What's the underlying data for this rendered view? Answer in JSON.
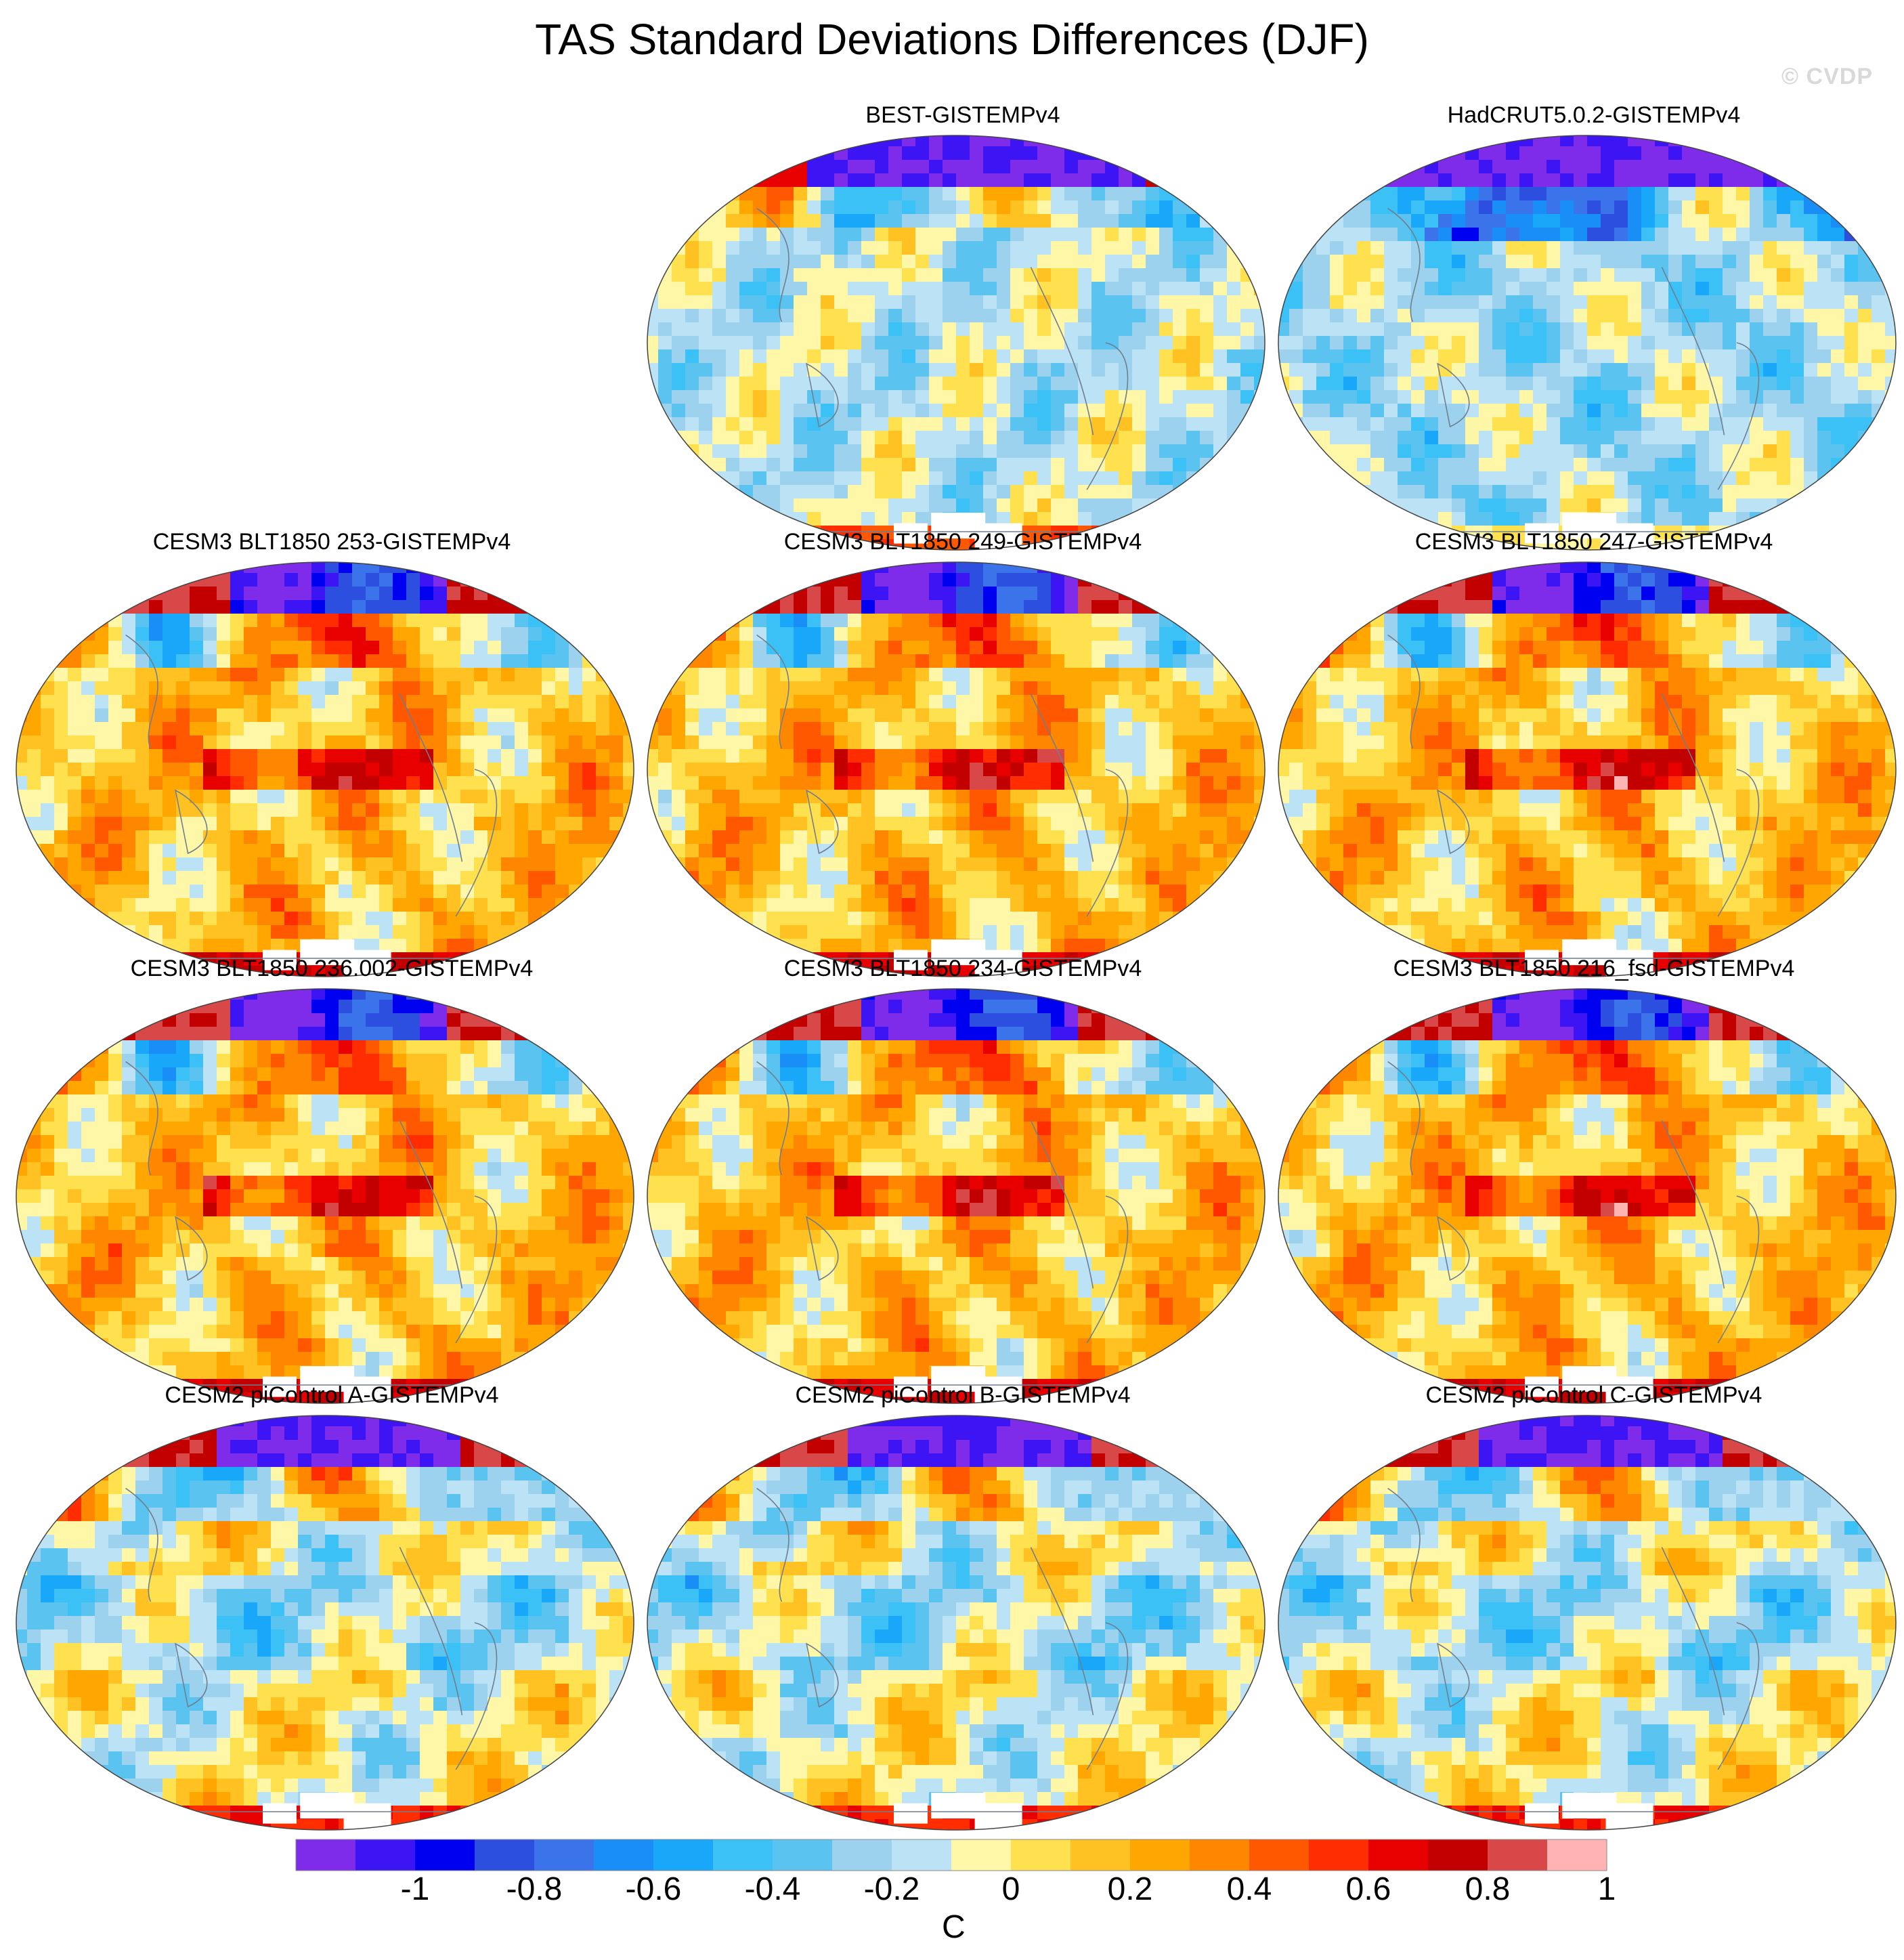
{
  "title": "TAS Standard Deviations Differences (DJF)",
  "watermark": "© CVDP",
  "panels": [
    {
      "title": "BEST-GISTEMPv4",
      "pattern": "obsA"
    },
    {
      "title": "HadCRUT5.0.2-GISTEMPv4",
      "pattern": "obsB"
    },
    {
      "title": "CESM3 BLT1850 253-GISTEMPv4",
      "pattern": "model"
    },
    {
      "title": "CESM3 BLT1850 249-GISTEMPv4",
      "pattern": "model"
    },
    {
      "title": "CESM3 BLT1850 247-GISTEMPv4",
      "pattern": "model"
    },
    {
      "title": "CESM3 BLT1850 236.002-GISTEMPv4",
      "pattern": "model"
    },
    {
      "title": "CESM3 BLT1850 234-GISTEMPv4",
      "pattern": "model"
    },
    {
      "title": "CESM3 BLT1850 216_fsd-GISTEMPv4",
      "pattern": "model"
    },
    {
      "title": "CESM2 piControl A-GISTEMPv4",
      "pattern": "cesm2"
    },
    {
      "title": "CESM2 piControl B-GISTEMPv4",
      "pattern": "cesm2"
    },
    {
      "title": "CESM2 piControl C-GISTEMPv4",
      "pattern": "cesm2"
    }
  ],
  "colorbar": {
    "levels": [
      "-1",
      "-0.8",
      "-0.6",
      "-0.4",
      "-0.2",
      "0",
      "0.2",
      "0.4",
      "0.6",
      "0.8",
      "1"
    ],
    "colors": [
      "#7e2bea",
      "#3d14f3",
      "#0000f0",
      "#2d4fe0",
      "#3a73ea",
      "#1a8ef7",
      "#19a8f9",
      "#3cc1f7",
      "#5ac3f0",
      "#9dd2ee",
      "#bce2f6",
      "#fff7a8",
      "#ffe04e",
      "#ffc222",
      "#ffa700",
      "#ff8700",
      "#ff5800",
      "#ff2d00",
      "#e80000",
      "#c20000",
      "#d94848",
      "#ffb3b3"
    ],
    "units": "C"
  }
}
